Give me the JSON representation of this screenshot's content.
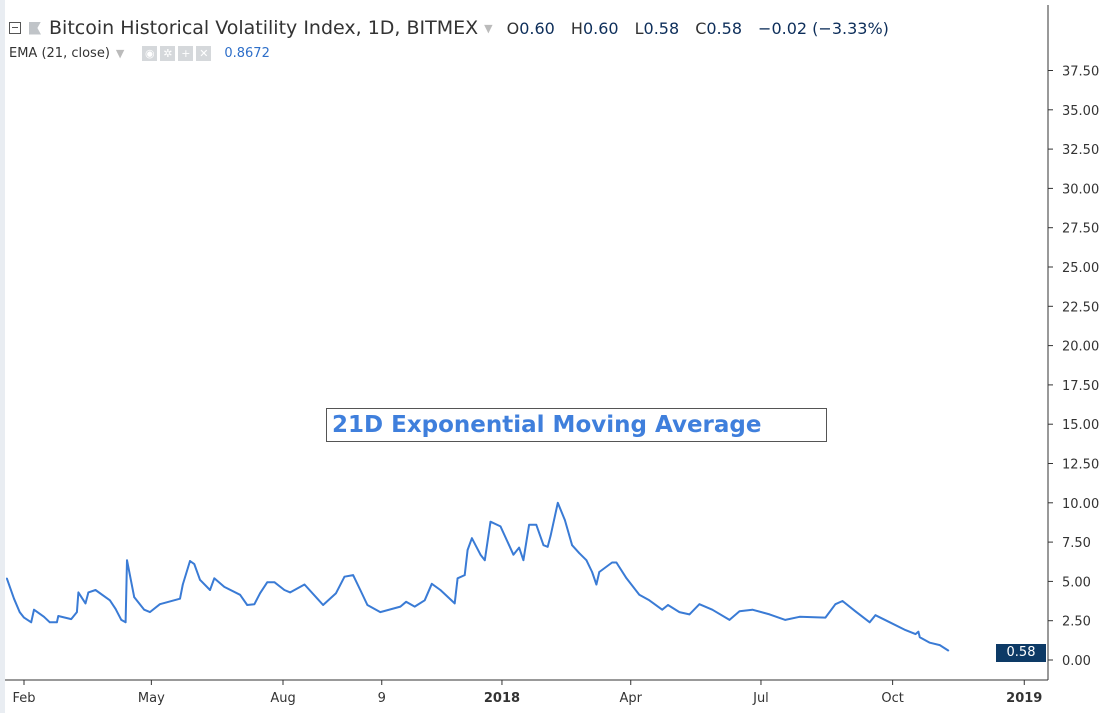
{
  "header": {
    "title": "Bitcoin Historical Volatility Index, 1D, BITMEX",
    "ohlc": {
      "o_label": "O",
      "o": "0.60",
      "h_label": "H",
      "h": "0.60",
      "l_label": "L",
      "l": "0.58",
      "c_label": "C",
      "c": "0.58",
      "change": "−0.02 (−3.33%)"
    },
    "indicator": {
      "label": "EMA (21, close)",
      "value": "0.8672",
      "icons": [
        "eye-icon",
        "gear-icon",
        "plus-icon",
        "close-icon"
      ]
    }
  },
  "annotation": "21D Exponential Moving Average",
  "last_price_badge": "0.58",
  "colors": {
    "line": "#3a7bd5",
    "badge": "#0d3a66",
    "annotation": "#3f7fdc"
  },
  "chart_data": {
    "type": "line",
    "title": "",
    "xlabel": "",
    "ylabel": "",
    "ylim": [
      0,
      39.5
    ],
    "y_axis_position": "right",
    "grid": false,
    "y_ticks": [
      "0.00",
      "2.50",
      "5.00",
      "7.50",
      "10.00",
      "12.50",
      "15.00",
      "17.50",
      "20.00",
      "22.50",
      "25.00",
      "27.50",
      "30.00",
      "32.50",
      "35.00",
      "37.50"
    ],
    "x_ticks": [
      {
        "label": "Feb",
        "date": "2017-02-01"
      },
      {
        "label": "May",
        "date": "2017-05-01"
      },
      {
        "label": "Aug",
        "date": "2017-08-01"
      },
      {
        "label": "9",
        "date": "2017-10-09"
      },
      {
        "label": "2018",
        "date": "2018-01-01"
      },
      {
        "label": "Apr",
        "date": "2018-04-01"
      },
      {
        "label": "Jul",
        "date": "2018-07-01"
      },
      {
        "label": "Oct",
        "date": "2018-10-01"
      },
      {
        "label": "2019",
        "date": "2019-01-01"
      }
    ],
    "series": [
      {
        "points": [
          [
            "2017-01-20",
            5.2
          ],
          [
            "2017-01-25",
            3.9
          ],
          [
            "2017-01-29",
            3.05
          ],
          [
            "2017-02-01",
            2.7
          ],
          [
            "2017-02-06",
            2.4
          ],
          [
            "2017-02-08",
            3.2
          ],
          [
            "2017-02-15",
            2.75
          ],
          [
            "2017-02-19",
            2.4
          ],
          [
            "2017-02-24",
            2.4
          ],
          [
            "2017-02-25",
            2.8
          ],
          [
            "2017-03-06",
            2.6
          ],
          [
            "2017-03-10",
            3.05
          ],
          [
            "2017-03-11",
            4.3
          ],
          [
            "2017-03-16",
            3.6
          ],
          [
            "2017-03-18",
            4.3
          ],
          [
            "2017-03-23",
            4.45
          ],
          [
            "2017-04-02",
            3.8
          ],
          [
            "2017-04-06",
            3.25
          ],
          [
            "2017-04-10",
            2.55
          ],
          [
            "2017-04-13",
            2.4
          ],
          [
            "2017-04-14",
            6.35
          ],
          [
            "2017-04-19",
            4.0
          ],
          [
            "2017-04-26",
            3.2
          ],
          [
            "2017-04-30",
            3.05
          ],
          [
            "2017-05-07",
            3.55
          ],
          [
            "2017-05-21",
            3.9
          ],
          [
            "2017-05-23",
            4.8
          ],
          [
            "2017-05-28",
            6.3
          ],
          [
            "2017-05-31",
            6.1
          ],
          [
            "2017-06-04",
            5.1
          ],
          [
            "2017-06-11",
            4.45
          ],
          [
            "2017-06-14",
            5.2
          ],
          [
            "2017-06-21",
            4.65
          ],
          [
            "2017-07-02",
            4.15
          ],
          [
            "2017-07-07",
            3.5
          ],
          [
            "2017-07-12",
            3.55
          ],
          [
            "2017-07-16",
            4.25
          ],
          [
            "2017-07-21",
            4.95
          ],
          [
            "2017-07-26",
            4.95
          ],
          [
            "2017-08-02",
            4.45
          ],
          [
            "2017-08-06",
            4.3
          ],
          [
            "2017-08-16",
            4.8
          ],
          [
            "2017-08-25",
            3.9
          ],
          [
            "2017-08-29",
            3.5
          ],
          [
            "2017-09-07",
            4.25
          ],
          [
            "2017-09-13",
            5.3
          ],
          [
            "2017-09-19",
            5.4
          ],
          [
            "2017-09-24",
            4.45
          ],
          [
            "2017-09-29",
            3.5
          ],
          [
            "2017-10-08",
            3.05
          ],
          [
            "2017-10-22",
            3.4
          ],
          [
            "2017-10-26",
            3.7
          ],
          [
            "2017-11-01",
            3.4
          ],
          [
            "2017-11-08",
            3.8
          ],
          [
            "2017-11-13",
            4.85
          ],
          [
            "2017-11-19",
            4.45
          ],
          [
            "2017-11-29",
            3.6
          ],
          [
            "2017-12-01",
            5.2
          ],
          [
            "2017-12-06",
            5.4
          ],
          [
            "2017-12-08",
            7.0
          ],
          [
            "2017-12-11",
            7.75
          ],
          [
            "2017-12-17",
            6.7
          ],
          [
            "2017-12-20",
            6.35
          ],
          [
            "2017-12-24",
            8.8
          ],
          [
            "2017-12-31",
            8.5
          ],
          [
            "2018-01-06",
            7.3
          ],
          [
            "2018-01-09",
            6.7
          ],
          [
            "2018-01-13",
            7.15
          ],
          [
            "2018-01-16",
            6.35
          ],
          [
            "2018-01-20",
            8.6
          ],
          [
            "2018-01-25",
            8.6
          ],
          [
            "2018-01-30",
            7.3
          ],
          [
            "2018-02-02",
            7.2
          ],
          [
            "2018-02-04",
            7.9
          ],
          [
            "2018-02-09",
            10.0
          ],
          [
            "2018-02-14",
            8.9
          ],
          [
            "2018-02-19",
            7.3
          ],
          [
            "2018-02-24",
            6.8
          ],
          [
            "2018-03-01",
            6.35
          ],
          [
            "2018-03-05",
            5.6
          ],
          [
            "2018-03-08",
            4.8
          ],
          [
            "2018-03-10",
            5.6
          ],
          [
            "2018-03-19",
            6.2
          ],
          [
            "2018-03-22",
            6.2
          ],
          [
            "2018-03-29",
            5.2
          ],
          [
            "2018-04-07",
            4.15
          ],
          [
            "2018-04-14",
            3.8
          ],
          [
            "2018-04-23",
            3.2
          ],
          [
            "2018-04-27",
            3.5
          ],
          [
            "2018-05-05",
            3.05
          ],
          [
            "2018-05-12",
            2.9
          ],
          [
            "2018-05-19",
            3.55
          ],
          [
            "2018-05-28",
            3.2
          ],
          [
            "2018-06-09",
            2.55
          ],
          [
            "2018-06-16",
            3.1
          ],
          [
            "2018-06-25",
            3.2
          ],
          [
            "2018-07-07",
            2.9
          ],
          [
            "2018-07-18",
            2.55
          ],
          [
            "2018-07-28",
            2.75
          ],
          [
            "2018-08-15",
            2.7
          ],
          [
            "2018-08-22",
            3.55
          ],
          [
            "2018-08-27",
            3.75
          ],
          [
            "2018-09-05",
            3.1
          ],
          [
            "2018-09-15",
            2.4
          ],
          [
            "2018-09-19",
            2.85
          ],
          [
            "2018-09-29",
            2.4
          ],
          [
            "2018-10-10",
            1.9
          ],
          [
            "2018-10-17",
            1.65
          ],
          [
            "2018-10-19",
            1.8
          ],
          [
            "2018-10-20",
            1.45
          ],
          [
            "2018-10-27",
            1.1
          ],
          [
            "2018-11-03",
            0.95
          ],
          [
            "2018-11-09",
            0.6
          ]
        ]
      }
    ]
  }
}
